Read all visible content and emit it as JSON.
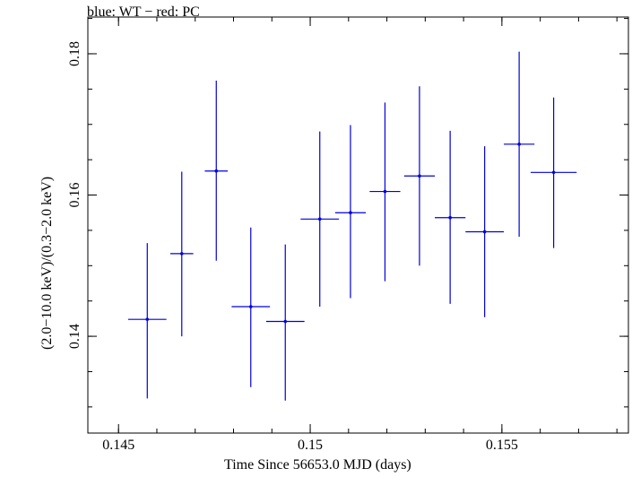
{
  "chart_data": {
    "type": "scatter",
    "title": "blue: WT − red: PC",
    "xlabel": "Time Since 56653.0 MJD (days)",
    "ylabel": "(2.0−10.0 keV)/(0.3−2.0 keV)",
    "xlim": [
      0.1442,
      0.1583
    ],
    "ylim": [
      0.1263,
      0.1852
    ],
    "x_ticks": [
      {
        "value": 0.145,
        "label": "0.145"
      },
      {
        "value": 0.15,
        "label": "0.15"
      },
      {
        "value": 0.155,
        "label": "0.155"
      }
    ],
    "y_ticks": [
      {
        "value": 0.14,
        "label": "0.14"
      },
      {
        "value": 0.16,
        "label": "0.16"
      },
      {
        "value": 0.18,
        "label": "0.18"
      }
    ],
    "x_minor_step": 0.001,
    "y_minor_step": 0.005,
    "grid": false,
    "series": [
      {
        "color": "#0000dd",
        "points": [
          {
            "x": 0.14575,
            "xerr": 0.0005,
            "y": 0.1424,
            "yerr_lo": 0.0112,
            "yerr_hi": 0.0108
          },
          {
            "x": 0.14665,
            "xerr": 0.0003,
            "y": 0.1517,
            "yerr_lo": 0.0117,
            "yerr_hi": 0.0116
          },
          {
            "x": 0.14755,
            "xerr": 0.0003,
            "y": 0.1634,
            "yerr_lo": 0.0127,
            "yerr_hi": 0.0128
          },
          {
            "x": 0.14845,
            "xerr": 0.0005,
            "y": 0.1442,
            "yerr_lo": 0.0114,
            "yerr_hi": 0.0112
          },
          {
            "x": 0.14935,
            "xerr": 0.0005,
            "y": 0.1421,
            "yerr_lo": 0.0112,
            "yerr_hi": 0.0109
          },
          {
            "x": 0.15025,
            "xerr": 0.0005,
            "y": 0.1566,
            "yerr_lo": 0.0124,
            "yerr_hi": 0.0124
          },
          {
            "x": 0.15105,
            "xerr": 0.0004,
            "y": 0.1575,
            "yerr_lo": 0.0121,
            "yerr_hi": 0.0124
          },
          {
            "x": 0.15195,
            "xerr": 0.0004,
            "y": 0.1605,
            "yerr_lo": 0.0127,
            "yerr_hi": 0.0126
          },
          {
            "x": 0.15285,
            "xerr": 0.0004,
            "y": 0.1627,
            "yerr_lo": 0.0127,
            "yerr_hi": 0.0127
          },
          {
            "x": 0.15365,
            "xerr": 0.0004,
            "y": 0.1568,
            "yerr_lo": 0.0122,
            "yerr_hi": 0.0123
          },
          {
            "x": 0.15455,
            "xerr": 0.0005,
            "y": 0.1548,
            "yerr_lo": 0.0121,
            "yerr_hi": 0.0121
          },
          {
            "x": 0.15545,
            "xerr": 0.0004,
            "y": 0.1672,
            "yerr_lo": 0.0131,
            "yerr_hi": 0.0131
          },
          {
            "x": 0.15635,
            "xerr": 0.0006,
            "y": 0.1632,
            "yerr_lo": 0.0107,
            "yerr_hi": 0.0106
          }
        ]
      }
    ]
  }
}
